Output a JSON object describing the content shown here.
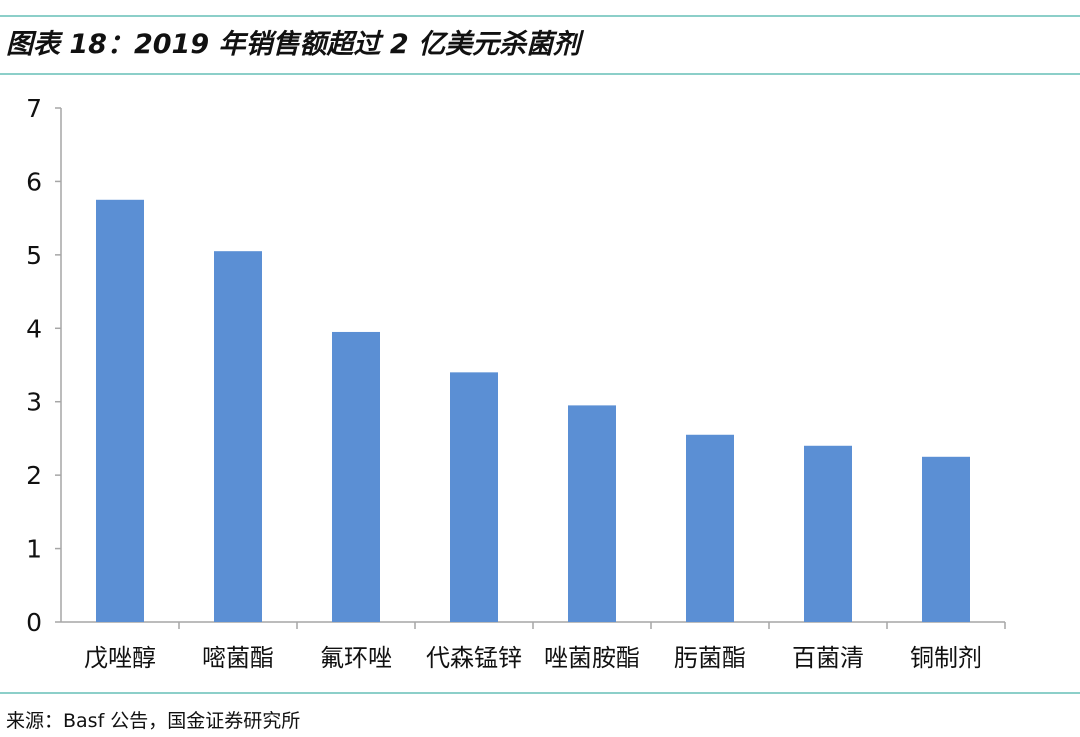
{
  "header": {
    "title": "图表 18：2019 年销售额超过 2 亿美元杀菌剂"
  },
  "footer": {
    "source": "来源：Basf 公告，国金证券研究所"
  },
  "colors": {
    "bar": "#5b8fd4",
    "rule": "#8ccfc9",
    "axis": "#a6a6a6"
  },
  "chart_data": {
    "type": "bar",
    "title": "图表 18：2019 年销售额超过 2 亿美元杀菌剂",
    "xlabel": "",
    "ylabel": "",
    "categories": [
      "戊唑醇",
      "嘧菌酯",
      "氟环唑",
      "代森锰锌",
      "唑菌胺酯",
      "肟菌酯",
      "百菌清",
      "铜制剂"
    ],
    "values": [
      5.75,
      5.05,
      3.95,
      3.4,
      2.95,
      2.55,
      2.4,
      2.25
    ],
    "ylim": [
      0,
      7
    ],
    "yticks": [
      0,
      1,
      2,
      3,
      4,
      5,
      6,
      7
    ],
    "grid": false,
    "legend": "none"
  }
}
